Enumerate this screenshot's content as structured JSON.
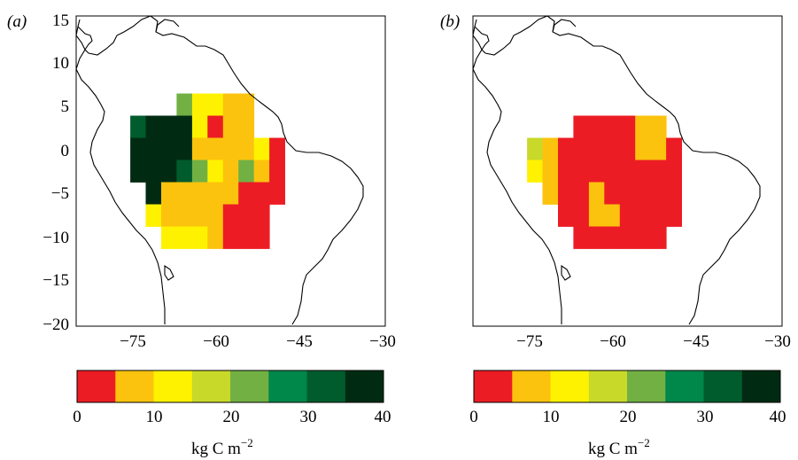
{
  "panels": [
    {
      "id": "a",
      "label": "(a)",
      "x_ticks": [
        "−75",
        "−60",
        "−45",
        "−30"
      ],
      "y_ticks": [
        "15",
        "10",
        "5",
        "0",
        "−5",
        "−10",
        "−15",
        "−20"
      ],
      "colorbar": {
        "ticks": [
          "0",
          "10",
          "20",
          "30",
          "40"
        ],
        "unit_main": "kg C m",
        "unit_sup": "−2"
      }
    },
    {
      "id": "b",
      "label": "(b)",
      "x_ticks": [
        "−75",
        "−60",
        "−45",
        "−30"
      ],
      "colorbar": {
        "ticks": [
          "0",
          "10",
          "20",
          "30",
          "40"
        ],
        "unit_main": "kg C m",
        "unit_sup": "−2"
      }
    }
  ],
  "colorbar_colors": [
    "#ec1c24",
    "#fcc30e",
    "#fff200",
    "#c8d92a",
    "#72b043",
    "#00874a",
    "#005c2d",
    "#002b12"
  ],
  "grid_value_bins": {
    "note_legend": "cell values are colorbar bin indices 0..7 (bin width 5 kg C m^-2)",
    "a": [
      {
        "lon": -62.5,
        "lat": 5,
        "bin": 4
      },
      {
        "lon": -60,
        "lat": 5,
        "bin": 2
      },
      {
        "lon": -57.5,
        "lat": 5,
        "bin": 2
      },
      {
        "lon": -55,
        "lat": 5,
        "bin": 1
      },
      {
        "lon": -52.5,
        "lat": 5,
        "bin": 1
      },
      {
        "lon": -70,
        "lat": 2.5,
        "bin": 6
      },
      {
        "lon": -67.5,
        "lat": 2.5,
        "bin": 7
      },
      {
        "lon": -65,
        "lat": 2.5,
        "bin": 7
      },
      {
        "lon": -62.5,
        "lat": 2.5,
        "bin": 7
      },
      {
        "lon": -60,
        "lat": 2.5,
        "bin": 2
      },
      {
        "lon": -57.5,
        "lat": 2.5,
        "bin": 0
      },
      {
        "lon": -55,
        "lat": 2.5,
        "bin": 1
      },
      {
        "lon": -52.5,
        "lat": 2.5,
        "bin": 1
      },
      {
        "lon": -70,
        "lat": 0,
        "bin": 7
      },
      {
        "lon": -67.5,
        "lat": 0,
        "bin": 7
      },
      {
        "lon": -65,
        "lat": 0,
        "bin": 7
      },
      {
        "lon": -62.5,
        "lat": 0,
        "bin": 7
      },
      {
        "lon": -60,
        "lat": 0,
        "bin": 1
      },
      {
        "lon": -57.5,
        "lat": 0,
        "bin": 1
      },
      {
        "lon": -55,
        "lat": 0,
        "bin": 1
      },
      {
        "lon": -52.5,
        "lat": 0,
        "bin": 1
      },
      {
        "lon": -50,
        "lat": 0,
        "bin": 2
      },
      {
        "lon": -47.5,
        "lat": 0,
        "bin": 0
      },
      {
        "lon": -70,
        "lat": -2.5,
        "bin": 7
      },
      {
        "lon": -67.5,
        "lat": -2.5,
        "bin": 7
      },
      {
        "lon": -65,
        "lat": -2.5,
        "bin": 7
      },
      {
        "lon": -62.5,
        "lat": -2.5,
        "bin": 6
      },
      {
        "lon": -60,
        "lat": -2.5,
        "bin": 4
      },
      {
        "lon": -57.5,
        "lat": -2.5,
        "bin": 2
      },
      {
        "lon": -55,
        "lat": -2.5,
        "bin": 1
      },
      {
        "lon": -52.5,
        "lat": -2.5,
        "bin": 4
      },
      {
        "lon": -50,
        "lat": -2.5,
        "bin": 1
      },
      {
        "lon": -47.5,
        "lat": -2.5,
        "bin": 0
      },
      {
        "lon": -67.5,
        "lat": -5,
        "bin": 7
      },
      {
        "lon": -65,
        "lat": -5,
        "bin": 1
      },
      {
        "lon": -62.5,
        "lat": -5,
        "bin": 1
      },
      {
        "lon": -60,
        "lat": -5,
        "bin": 1
      },
      {
        "lon": -57.5,
        "lat": -5,
        "bin": 1
      },
      {
        "lon": -55,
        "lat": -5,
        "bin": 1
      },
      {
        "lon": -52.5,
        "lat": -5,
        "bin": 0
      },
      {
        "lon": -50,
        "lat": -5,
        "bin": 0
      },
      {
        "lon": -47.5,
        "lat": -5,
        "bin": 0
      },
      {
        "lon": -67.5,
        "lat": -7.5,
        "bin": 2
      },
      {
        "lon": -65,
        "lat": -7.5,
        "bin": 1
      },
      {
        "lon": -62.5,
        "lat": -7.5,
        "bin": 1
      },
      {
        "lon": -60,
        "lat": -7.5,
        "bin": 1
      },
      {
        "lon": -57.5,
        "lat": -7.5,
        "bin": 1
      },
      {
        "lon": -55,
        "lat": -7.5,
        "bin": 0
      },
      {
        "lon": -52.5,
        "lat": -7.5,
        "bin": 0
      },
      {
        "lon": -50,
        "lat": -7.5,
        "bin": 0
      },
      {
        "lon": -65,
        "lat": -10,
        "bin": 2
      },
      {
        "lon": -62.5,
        "lat": -10,
        "bin": 2
      },
      {
        "lon": -60,
        "lat": -10,
        "bin": 2
      },
      {
        "lon": -57.5,
        "lat": -10,
        "bin": 1
      },
      {
        "lon": -55,
        "lat": -10,
        "bin": 0
      },
      {
        "lon": -52.5,
        "lat": -10,
        "bin": 0
      },
      {
        "lon": -50,
        "lat": -10,
        "bin": 0
      }
    ],
    "b": [
      {
        "lon": -62.5,
        "lat": 2.5,
        "bin": 0
      },
      {
        "lon": -60,
        "lat": 2.5,
        "bin": 0
      },
      {
        "lon": -57.5,
        "lat": 2.5,
        "bin": 0
      },
      {
        "lon": -55,
        "lat": 2.5,
        "bin": 0
      },
      {
        "lon": -52.5,
        "lat": 2.5,
        "bin": 1
      },
      {
        "lon": -50,
        "lat": 2.5,
        "bin": 1
      },
      {
        "lon": -70,
        "lat": 0,
        "bin": 3
      },
      {
        "lon": -67.5,
        "lat": 0,
        "bin": 1
      },
      {
        "lon": -65,
        "lat": 0,
        "bin": 0
      },
      {
        "lon": -62.5,
        "lat": 0,
        "bin": 0
      },
      {
        "lon": -60,
        "lat": 0,
        "bin": 0
      },
      {
        "lon": -57.5,
        "lat": 0,
        "bin": 0
      },
      {
        "lon": -55,
        "lat": 0,
        "bin": 0
      },
      {
        "lon": -52.5,
        "lat": 0,
        "bin": 1
      },
      {
        "lon": -50,
        "lat": 0,
        "bin": 1
      },
      {
        "lon": -47.5,
        "lat": 0,
        "bin": 0
      },
      {
        "lon": -70,
        "lat": -2.5,
        "bin": 2
      },
      {
        "lon": -67.5,
        "lat": -2.5,
        "bin": 1
      },
      {
        "lon": -65,
        "lat": -2.5,
        "bin": 0
      },
      {
        "lon": -62.5,
        "lat": -2.5,
        "bin": 0
      },
      {
        "lon": -60,
        "lat": -2.5,
        "bin": 0
      },
      {
        "lon": -57.5,
        "lat": -2.5,
        "bin": 0
      },
      {
        "lon": -55,
        "lat": -2.5,
        "bin": 0
      },
      {
        "lon": -52.5,
        "lat": -2.5,
        "bin": 0
      },
      {
        "lon": -50,
        "lat": -2.5,
        "bin": 0
      },
      {
        "lon": -47.5,
        "lat": -2.5,
        "bin": 0
      },
      {
        "lon": -67.5,
        "lat": -5,
        "bin": 1
      },
      {
        "lon": -65,
        "lat": -5,
        "bin": 0
      },
      {
        "lon": -62.5,
        "lat": -5,
        "bin": 0
      },
      {
        "lon": -60,
        "lat": -5,
        "bin": 1
      },
      {
        "lon": -57.5,
        "lat": -5,
        "bin": 0
      },
      {
        "lon": -55,
        "lat": -5,
        "bin": 0
      },
      {
        "lon": -52.5,
        "lat": -5,
        "bin": 0
      },
      {
        "lon": -50,
        "lat": -5,
        "bin": 0
      },
      {
        "lon": -47.5,
        "lat": -5,
        "bin": 0
      },
      {
        "lon": -65,
        "lat": -7.5,
        "bin": 0
      },
      {
        "lon": -62.5,
        "lat": -7.5,
        "bin": 0
      },
      {
        "lon": -60,
        "lat": -7.5,
        "bin": 1
      },
      {
        "lon": -57.5,
        "lat": -7.5,
        "bin": 1
      },
      {
        "lon": -55,
        "lat": -7.5,
        "bin": 0
      },
      {
        "lon": -52.5,
        "lat": -7.5,
        "bin": 0
      },
      {
        "lon": -50,
        "lat": -7.5,
        "bin": 0
      },
      {
        "lon": -47.5,
        "lat": -7.5,
        "bin": 0
      },
      {
        "lon": -62.5,
        "lat": -10,
        "bin": 0
      },
      {
        "lon": -60,
        "lat": -10,
        "bin": 0
      },
      {
        "lon": -57.5,
        "lat": -10,
        "bin": 0
      },
      {
        "lon": -55,
        "lat": -10,
        "bin": 0
      },
      {
        "lon": -52.5,
        "lat": -10,
        "bin": 0
      },
      {
        "lon": -50,
        "lat": -10,
        "bin": 0
      }
    ]
  }
}
